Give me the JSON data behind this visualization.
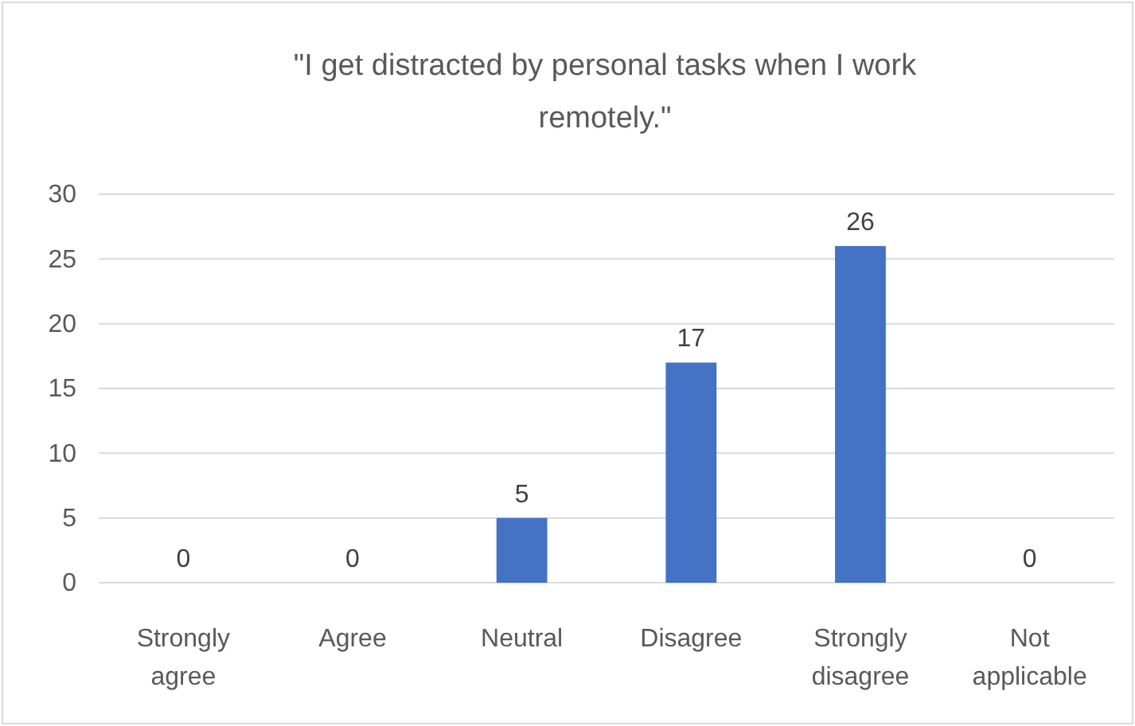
{
  "chart_data": {
    "type": "bar",
    "title": "\"I get distracted by personal tasks when I work remotely.\"",
    "categories": [
      "Strongly agree",
      "Agree",
      "Neutral",
      "Disagree",
      "Strongly disagree",
      "Not applicable"
    ],
    "values": [
      0,
      0,
      5,
      17,
      26,
      0
    ],
    "color": "#4472c4",
    "ylim": [
      0,
      30
    ],
    "yticks": [
      0,
      5,
      10,
      15,
      20,
      25,
      30
    ],
    "grid": "y",
    "data_labels": true
  }
}
